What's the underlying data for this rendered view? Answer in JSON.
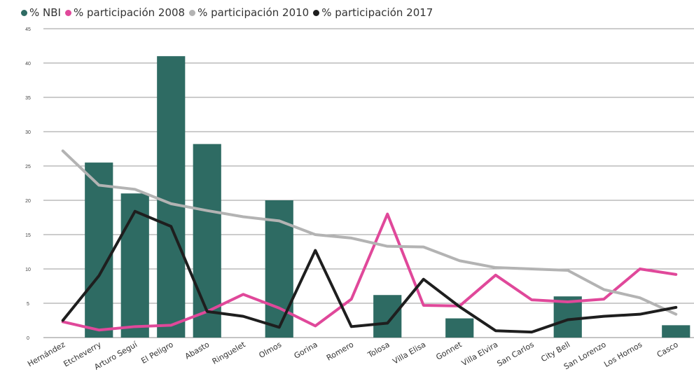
{
  "chart_data": {
    "type": "bar",
    "title": "",
    "xlabel": "",
    "ylabel": "",
    "ylim": [
      0,
      45
    ],
    "yticks": [
      0,
      5,
      10,
      15,
      20,
      25,
      30,
      35,
      40,
      45
    ],
    "grid": true,
    "legend_position": "top-left",
    "categories": [
      "Hernández",
      "Etcheverry",
      "Arturo Seguí",
      "El Peligro",
      "Abasto",
      "Ringuelet",
      "Olmos",
      "Gorina",
      "Romero",
      "Tolosa",
      "Villa Elisa",
      "Gonnet",
      "Villa Elvira",
      "San Carlos",
      "City Bell",
      "San Lorenzo",
      "Los Hornos",
      "Casco"
    ],
    "series": [
      {
        "name": "% NBI",
        "type": "bar",
        "color": "#2e6b63",
        "values": [
          null,
          25.5,
          21,
          41,
          28.2,
          null,
          20,
          null,
          null,
          6.2,
          null,
          2.8,
          null,
          null,
          6,
          null,
          null,
          1.8
        ]
      },
      {
        "name": "% participación 2008",
        "type": "line",
        "color": "#e0489a",
        "values": [
          2.3,
          1.1,
          1.6,
          1.8,
          3.8,
          6.3,
          4.3,
          1.7,
          5.6,
          18,
          4.7,
          4.6,
          9.1,
          5.5,
          5.2,
          5.6,
          10,
          9.2
        ]
      },
      {
        "name": "% participación 2010",
        "type": "line",
        "color": "#b3b3b3",
        "values": [
          27.2,
          22.2,
          21.6,
          19.5,
          18.5,
          17.6,
          17,
          15,
          14.5,
          13.3,
          13.2,
          11.2,
          10.2,
          10,
          9.8,
          7,
          5.8,
          3.4
        ]
      },
      {
        "name": "% participación 2017",
        "type": "line",
        "color": "#1e1e1e",
        "values": [
          2.5,
          9,
          18.4,
          16.2,
          3.8,
          3.1,
          1.5,
          12.7,
          1.6,
          2.1,
          8.5,
          4.5,
          1,
          0.8,
          2.6,
          3.1,
          3.4,
          4.4
        ]
      }
    ]
  }
}
